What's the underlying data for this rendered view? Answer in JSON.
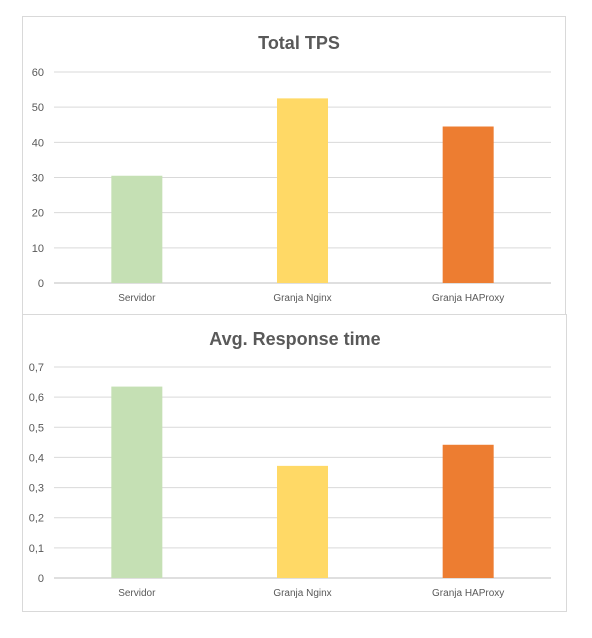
{
  "chart_data": [
    {
      "type": "bar",
      "title": "Total TPS",
      "categories": [
        "Servidor",
        "Granja Nginx",
        "Granja HAProxy"
      ],
      "values": [
        30.5,
        52.5,
        44.5
      ],
      "y_ticks": [
        "0",
        "10",
        "20",
        "30",
        "40",
        "50",
        "60"
      ],
      "ylim": [
        0,
        60
      ],
      "grid": true,
      "legend": "none",
      "colors": [
        "#c5e0b4",
        "#ffd966",
        "#ed7d31"
      ]
    },
    {
      "type": "bar",
      "title": "Avg. Response time",
      "categories": [
        "Servidor",
        "Granja Nginx",
        "Granja HAProxy"
      ],
      "values": [
        0.635,
        0.372,
        0.442
      ],
      "y_ticks": [
        "0",
        "0,1",
        "0,2",
        "0,3",
        "0,4",
        "0,5",
        "0,6",
        "0,7"
      ],
      "ylim": [
        0,
        0.7
      ],
      "grid": true,
      "legend": "none",
      "colors": [
        "#c5e0b4",
        "#ffd966",
        "#ed7d31"
      ]
    }
  ]
}
